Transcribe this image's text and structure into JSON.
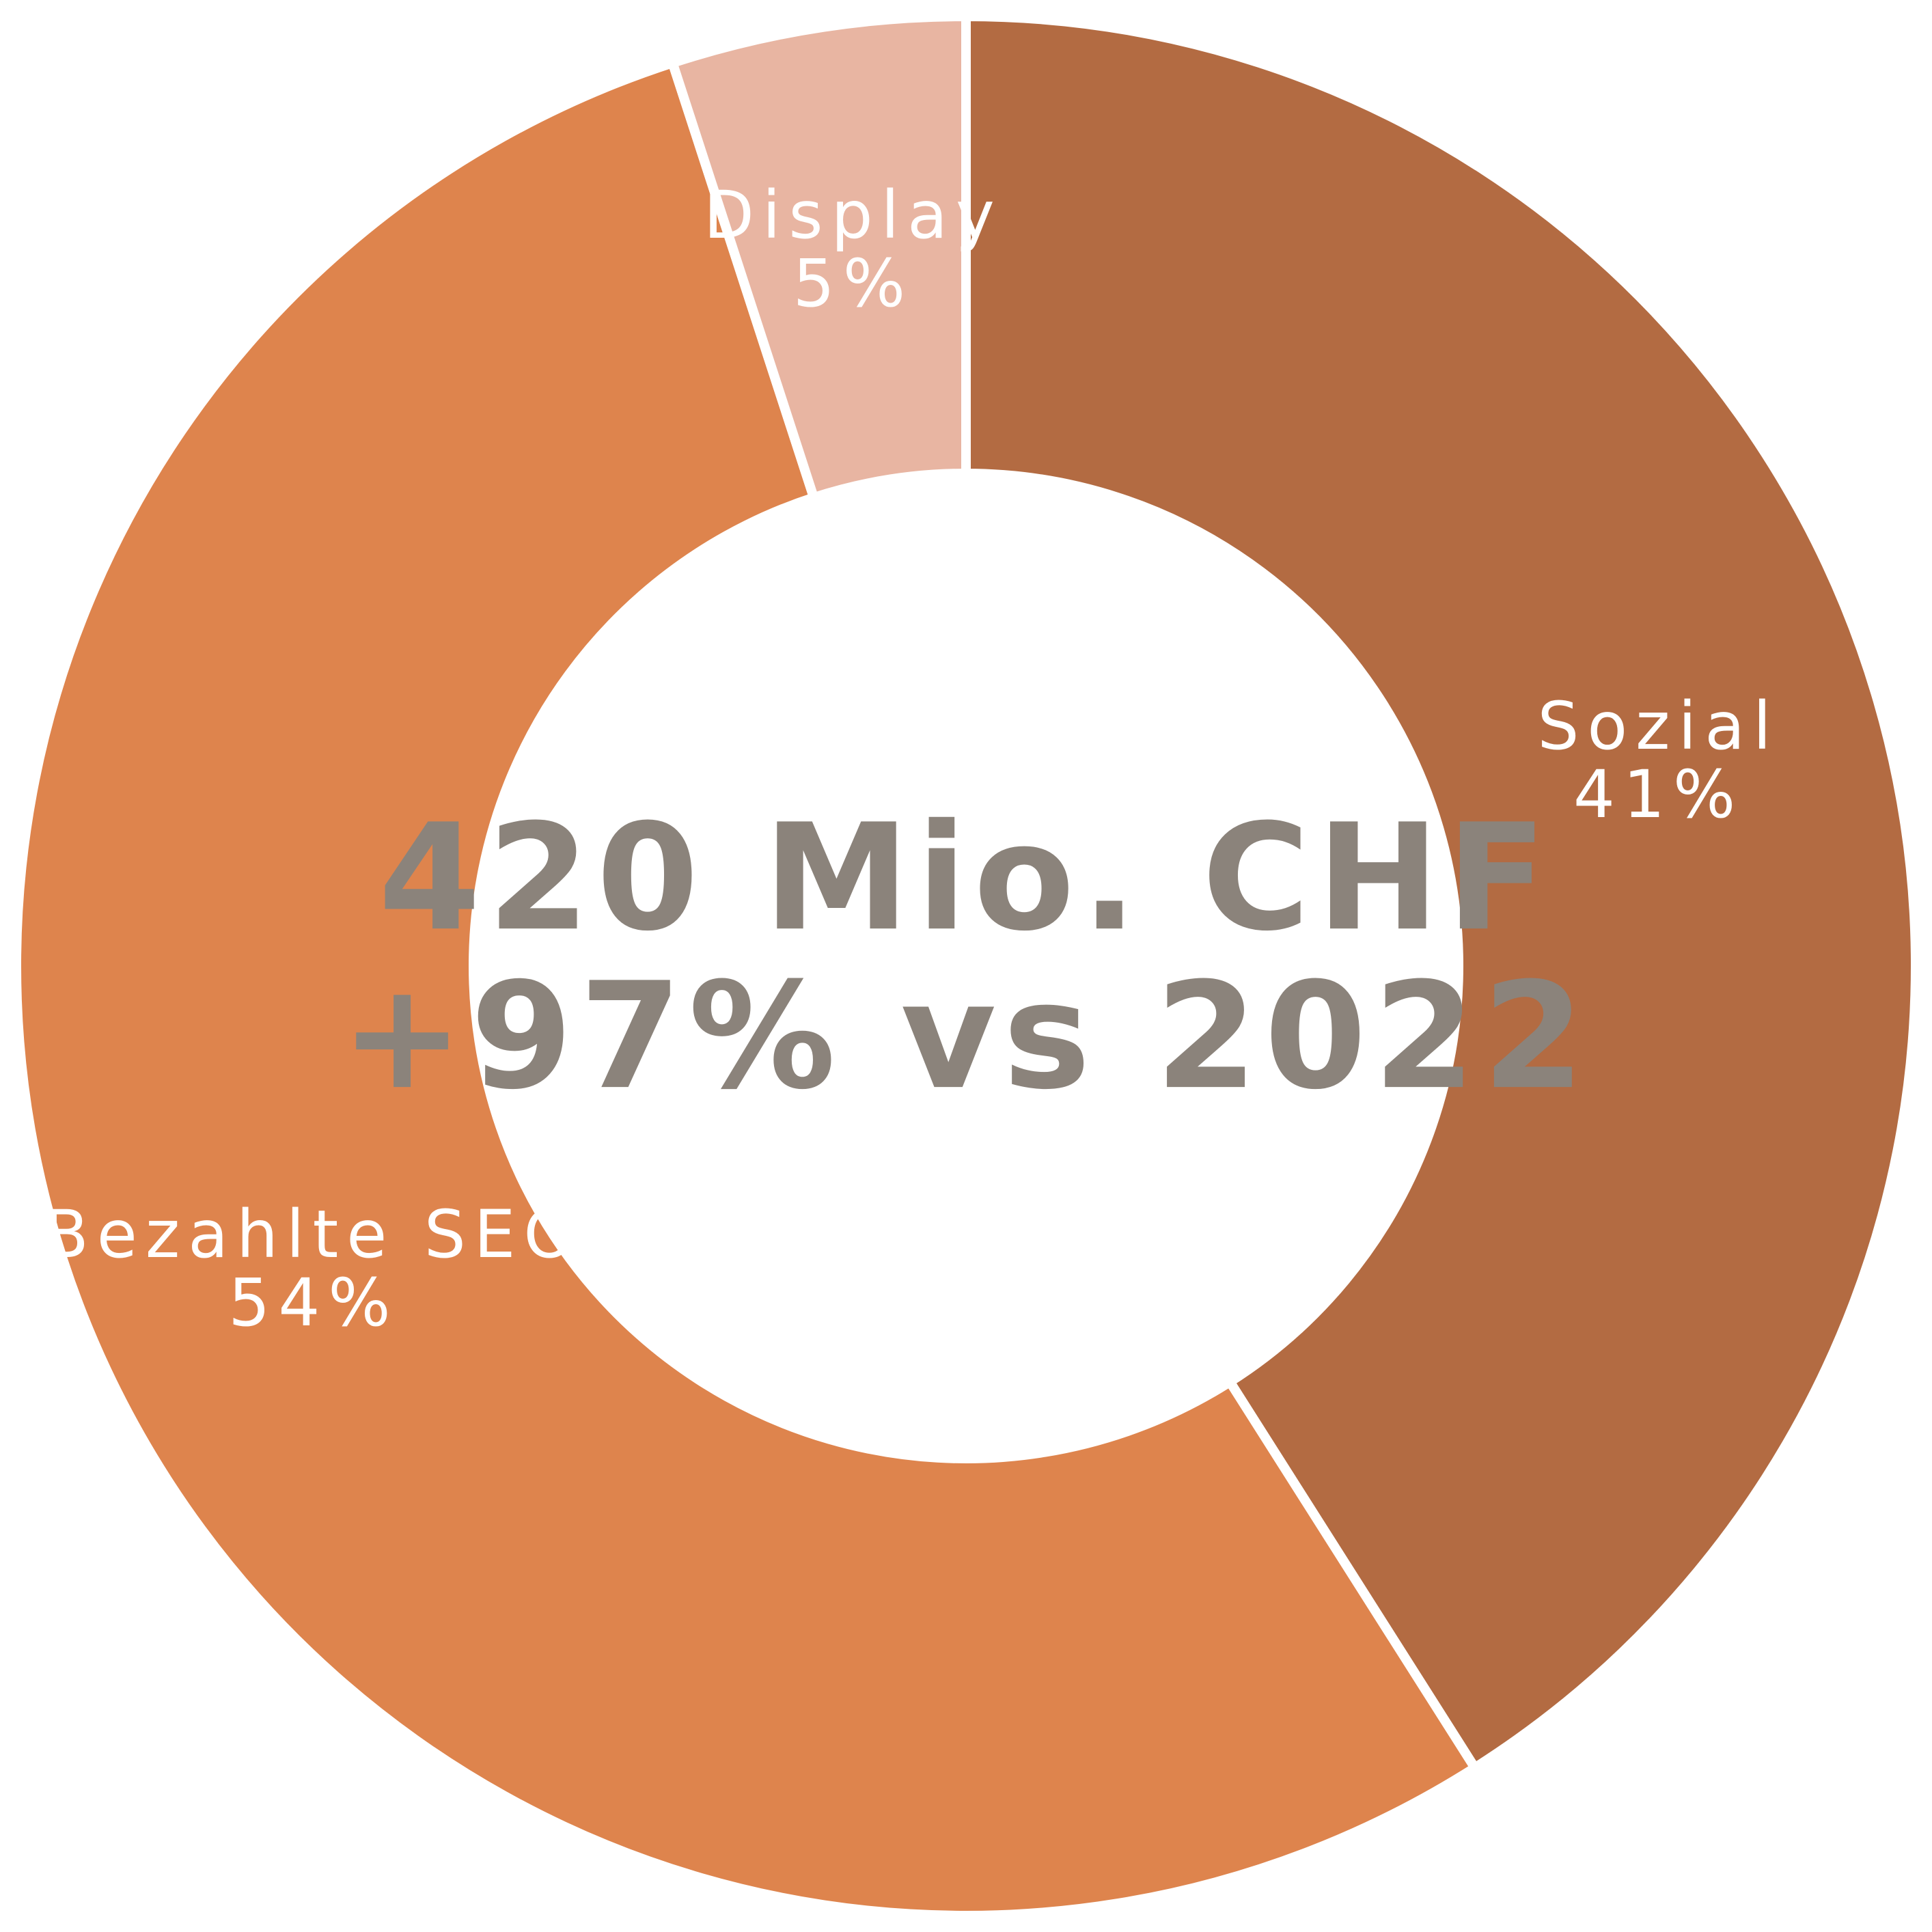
{
  "chart_data": {
    "type": "donut",
    "title": "420 Mio. CHF",
    "subtitle": "+97% vs 2022",
    "categories": [
      "Sozial",
      "Bezahlte SEO",
      "Display"
    ],
    "values": [
      41,
      54,
      5
    ],
    "value_labels": [
      "41%",
      "54%",
      "5%"
    ],
    "colors": [
      "#b36b42",
      "#de844d",
      "#e8b5a2"
    ]
  }
}
